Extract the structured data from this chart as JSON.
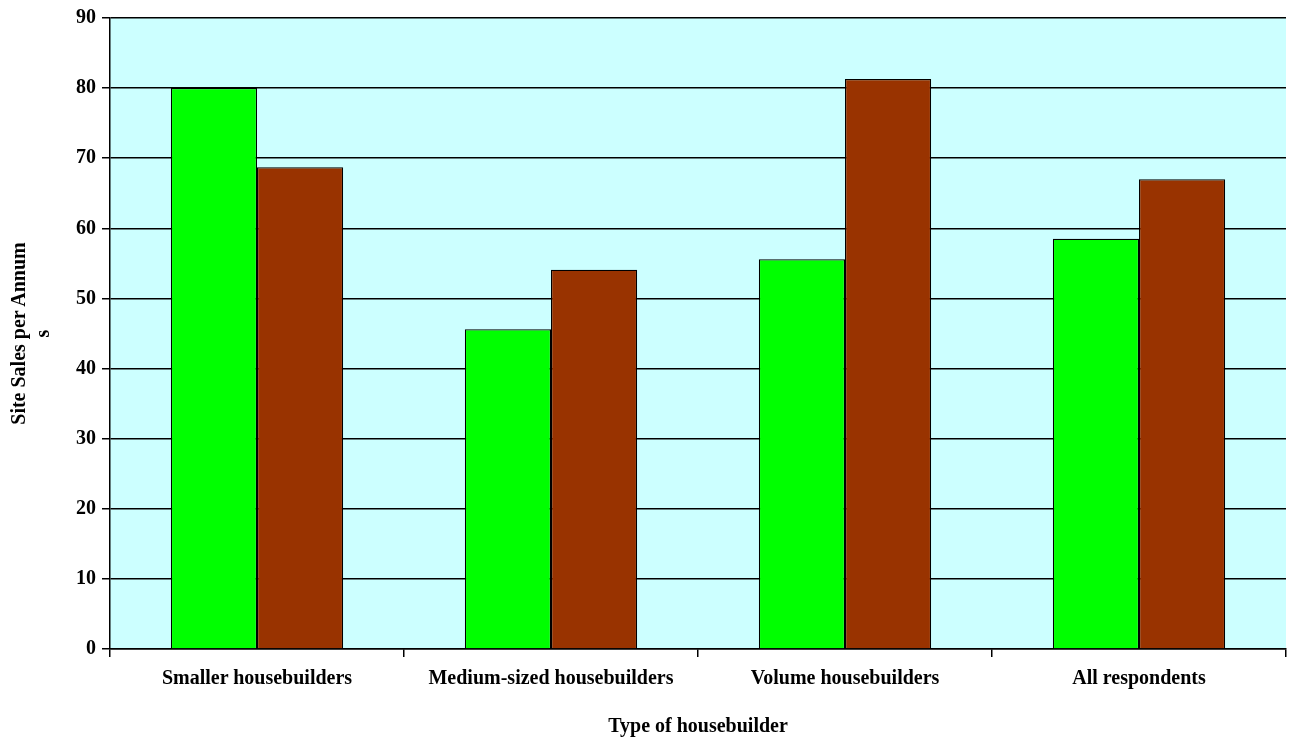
{
  "chart_data": {
    "type": "bar",
    "xlabel": "Type of housebuilder",
    "ylabel": "Site Sales per Annum\ns",
    "categories": [
      "Smaller housebuilders",
      "Medium-sized housebuilders",
      "Volume housebuilders",
      "All respondents"
    ],
    "series": [
      {
        "color": "#00ff00",
        "values": [
          80,
          45.6,
          55.6,
          58.5
        ]
      },
      {
        "color": "#993300",
        "values": [
          68.7,
          54.1,
          81.3,
          67
        ]
      }
    ],
    "ylim": [
      0,
      90
    ],
    "yticks": [
      0,
      10,
      20,
      30,
      40,
      50,
      60,
      70,
      80,
      90
    ],
    "grid": "y",
    "legend": false
  }
}
